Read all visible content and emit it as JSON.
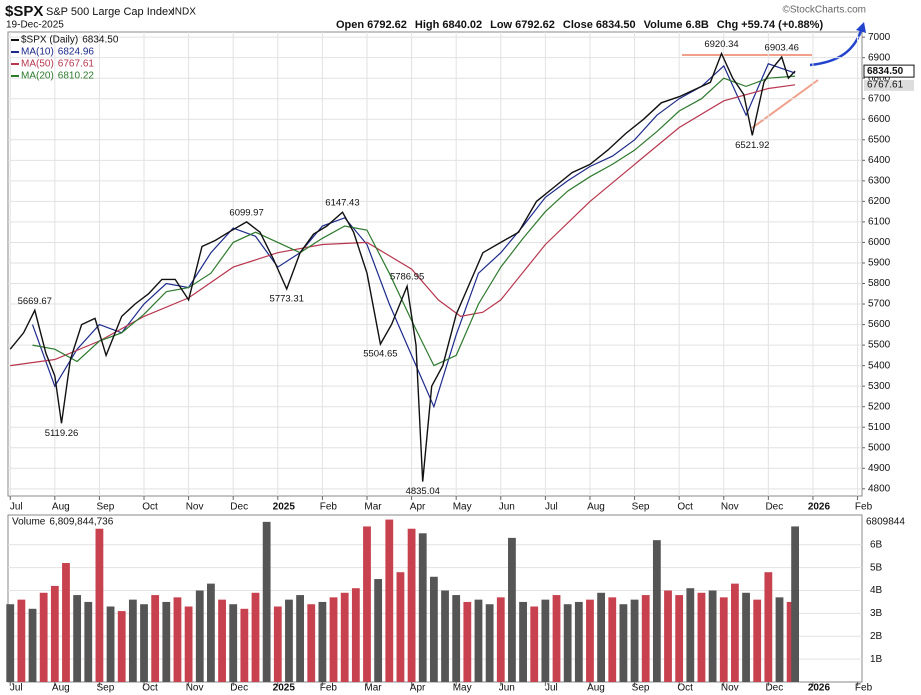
{
  "chart_data": [
    {
      "type": "line",
      "title": "$SPX",
      "subtitle": "S&P 500 Large Cap Index",
      "exchange": "INDX",
      "date": "19-Dec-2025",
      "watermark": "©StockCharts.com",
      "quote": [
        {
          "label": "Open",
          "value": "6792.62"
        },
        {
          "label": "High",
          "value": "6840.02"
        },
        {
          "label": "Low",
          "value": "6792.62"
        },
        {
          "label": "Close",
          "value": "6834.50"
        },
        {
          "label": "Volume",
          "value": "6.8B"
        },
        {
          "label": "Chg",
          "value": "+59.74 (+0.88%)"
        }
      ],
      "xlim": [
        -0.05,
        19.1
      ],
      "xticks": [
        {
          "value": 0,
          "label": "Jul"
        },
        {
          "value": 1,
          "label": "Aug"
        },
        {
          "value": 2,
          "label": "Sep"
        },
        {
          "value": 3,
          "label": "Oct"
        },
        {
          "value": 4,
          "label": "Nov"
        },
        {
          "value": 5,
          "label": "Dec"
        },
        {
          "value": 6,
          "label": "2025"
        },
        {
          "value": 7,
          "label": "Feb"
        },
        {
          "value": 8,
          "label": "Mar"
        },
        {
          "value": 9,
          "label": "Apr"
        },
        {
          "value": 10,
          "label": "May"
        },
        {
          "value": 11,
          "label": "Jun"
        },
        {
          "value": 12,
          "label": "Jul"
        },
        {
          "value": 13,
          "label": "Aug"
        },
        {
          "value": 14,
          "label": "Sep"
        },
        {
          "value": 15,
          "label": "Oct"
        },
        {
          "value": 16,
          "label": "Nov"
        },
        {
          "value": 17,
          "label": "Dec"
        },
        {
          "value": 18,
          "label": "2026"
        },
        {
          "value": 19,
          "label": "Feb"
        }
      ],
      "ylim": [
        4765,
        7025
      ],
      "yticks": [
        4800,
        4900,
        5000,
        5100,
        5200,
        5300,
        5400,
        5500,
        5600,
        5700,
        5800,
        5900,
        6000,
        6100,
        6200,
        6300,
        6400,
        6500,
        6600,
        6700,
        6800,
        6900,
        7000
      ],
      "grid": true,
      "series": [
        {
          "name": "$SPX (Daily)",
          "last_label": "6834.50",
          "color": "#111111",
          "x": [
            0,
            0.3,
            0.55,
            0.8,
            1.0,
            1.15,
            1.35,
            1.6,
            1.9,
            2.15,
            2.5,
            2.8,
            3.1,
            3.4,
            3.7,
            4.0,
            4.3,
            4.6,
            4.9,
            5.3,
            5.6,
            5.9,
            6.2,
            6.5,
            6.8,
            7.1,
            7.45,
            7.7,
            8.0,
            8.3,
            8.55,
            8.9,
            9.1,
            9.25,
            9.45,
            9.7,
            10.0,
            10.3,
            10.6,
            11.0,
            11.4,
            11.8,
            12.2,
            12.6,
            13.0,
            13.4,
            13.8,
            14.2,
            14.6,
            15.0,
            15.4,
            15.7,
            15.95,
            16.2,
            16.45,
            16.64,
            16.9,
            17.1,
            17.3,
            17.45,
            17.6
          ],
          "values": [
            5480,
            5560,
            5669.67,
            5460,
            5350,
            5119.26,
            5430,
            5600,
            5630,
            5450,
            5640,
            5700,
            5750,
            5820,
            5820,
            5720,
            5980,
            6010,
            6050,
            6099.97,
            6050,
            5920,
            5773.31,
            5950,
            6040,
            6080,
            6147.43,
            6050,
            5850,
            5504.65,
            5600,
            5786.95,
            5500,
            4835.04,
            5300,
            5400,
            5650,
            5800,
            5950,
            6000,
            6050,
            6200,
            6270,
            6340,
            6380,
            6450,
            6530,
            6600,
            6680,
            6710,
            6750,
            6780,
            6920.34,
            6800,
            6720,
            6521.92,
            6780,
            6850,
            6903.46,
            6800,
            6834.5
          ]
        },
        {
          "name": "MA(10)",
          "last_label": "6824.96",
          "color": "#1c2a8c",
          "x": [
            0.5,
            1,
            1.5,
            2,
            2.5,
            3,
            3.5,
            4,
            4.5,
            5,
            5.5,
            6,
            6.5,
            7,
            7.5,
            8,
            8.5,
            9,
            9.5,
            10,
            10.5,
            11,
            11.5,
            12,
            12.5,
            13,
            13.5,
            14,
            14.5,
            15,
            15.5,
            16,
            16.5,
            17,
            17.6
          ],
          "values": [
            5600,
            5300,
            5480,
            5600,
            5560,
            5700,
            5800,
            5780,
            5950,
            6070,
            6030,
            5880,
            5950,
            6080,
            6120,
            5990,
            5700,
            5450,
            5200,
            5550,
            5850,
            5950,
            6080,
            6220,
            6300,
            6370,
            6420,
            6500,
            6620,
            6700,
            6760,
            6860,
            6620,
            6870,
            6824.96
          ]
        },
        {
          "name": "MA(50)",
          "last_label": "6767.61",
          "color": "#b8374f",
          "x": [
            0,
            1,
            2,
            3,
            4,
            5,
            6,
            7,
            8,
            9,
            9.6,
            10.1,
            10.6,
            11,
            12,
            13,
            14,
            15,
            16,
            17,
            17.6
          ],
          "values": [
            5400,
            5430,
            5520,
            5640,
            5730,
            5880,
            5950,
            5990,
            6000,
            5870,
            5720,
            5640,
            5660,
            5720,
            5990,
            6200,
            6380,
            6560,
            6690,
            6750,
            6767.61
          ]
        },
        {
          "name": "MA(20)",
          "last_label": "6810.22",
          "color": "#2d7a2d",
          "x": [
            0.5,
            1,
            1.5,
            2,
            2.5,
            3,
            3.5,
            4,
            4.5,
            5,
            5.5,
            6,
            6.5,
            7,
            7.5,
            8,
            8.5,
            9,
            9.5,
            10,
            10.5,
            11,
            11.5,
            12,
            12.5,
            13,
            13.5,
            14,
            14.5,
            15,
            15.5,
            16,
            16.5,
            17,
            17.6
          ],
          "values": [
            5500,
            5480,
            5420,
            5520,
            5560,
            5650,
            5760,
            5780,
            5850,
            6000,
            6050,
            6000,
            5950,
            6020,
            6080,
            6060,
            5850,
            5620,
            5400,
            5450,
            5700,
            5880,
            6020,
            6150,
            6250,
            6320,
            6380,
            6450,
            6540,
            6640,
            6700,
            6800,
            6760,
            6800,
            6810.22
          ]
        }
      ],
      "annotations": [
        {
          "index": 2,
          "position": "above"
        },
        {
          "index": 5,
          "position": "below"
        },
        {
          "index": 19,
          "position": "above"
        },
        {
          "index": 22,
          "position": "below"
        },
        {
          "index": 26,
          "position": "above"
        },
        {
          "index": 29,
          "position": "below"
        },
        {
          "index": 31,
          "position": "above"
        },
        {
          "index": 33,
          "position": "below"
        },
        {
          "index": 52,
          "position": "above"
        },
        {
          "index": 55,
          "position": "below"
        },
        {
          "index": 58,
          "position": "above"
        }
      ]
    },
    {
      "type": "bar",
      "title": "Volume",
      "total_label": "6,809,844,736",
      "last_label": "6809844",
      "xlim": [
        -0.05,
        19.1
      ],
      "ylim": [
        0,
        7.3
      ],
      "yticks": [
        {
          "value": 1,
          "label": "1B"
        },
        {
          "value": 2,
          "label": "2B"
        },
        {
          "value": 3,
          "label": "3B"
        },
        {
          "value": 4,
          "label": "4B"
        },
        {
          "value": 5,
          "label": "5B"
        },
        {
          "value": 6,
          "label": "6B"
        }
      ],
      "palette": [
        "#c8414f",
        "#555555"
      ],
      "x": [
        0,
        0.25,
        0.5,
        0.75,
        1,
        1.25,
        1.5,
        1.75,
        2,
        2.25,
        2.5,
        2.75,
        3,
        3.25,
        3.5,
        3.75,
        4,
        4.25,
        4.5,
        4.75,
        5,
        5.25,
        5.5,
        5.75,
        6,
        6.25,
        6.5,
        6.75,
        7,
        7.25,
        7.5,
        7.75,
        8,
        8.25,
        8.5,
        8.75,
        9,
        9.25,
        9.5,
        9.75,
        10,
        10.25,
        10.5,
        10.75,
        11,
        11.25,
        11.5,
        11.75,
        12,
        12.25,
        12.5,
        12.75,
        13,
        13.25,
        13.5,
        13.75,
        14,
        14.25,
        14.5,
        14.75,
        15,
        15.25,
        15.5,
        15.75,
        16,
        16.25,
        16.5,
        16.75,
        17,
        17.25,
        17.5,
        17.6
      ],
      "values": [
        3.4,
        3.6,
        3.2,
        3.9,
        4.2,
        5.2,
        3.8,
        3.5,
        6.7,
        3.3,
        3.1,
        3.6,
        3.4,
        3.8,
        3.5,
        3.7,
        3.3,
        4.0,
        4.3,
        3.6,
        3.4,
        3.2,
        3.9,
        7.0,
        3.3,
        3.6,
        3.8,
        3.4,
        3.5,
        3.7,
        3.9,
        4.1,
        6.8,
        4.5,
        7.1,
        4.8,
        6.7,
        6.5,
        4.6,
        4.0,
        3.8,
        3.5,
        3.6,
        3.4,
        3.7,
        6.3,
        3.5,
        3.3,
        3.6,
        3.8,
        3.4,
        3.5,
        3.6,
        3.9,
        3.7,
        3.4,
        3.6,
        3.8,
        6.2,
        4.0,
        3.8,
        4.1,
        3.9,
        4.0,
        3.7,
        4.3,
        3.9,
        3.6,
        4.8,
        3.7,
        3.5,
        6.8
      ],
      "bar_colors": [
        1,
        0,
        1,
        0,
        0,
        0,
        1,
        1,
        0,
        1,
        0,
        1,
        1,
        0,
        1,
        0,
        0,
        1,
        1,
        0,
        1,
        0,
        0,
        1,
        0,
        1,
        1,
        0,
        1,
        0,
        0,
        0,
        0,
        1,
        0,
        0,
        0,
        1,
        1,
        1,
        1,
        0,
        1,
        1,
        0,
        1,
        1,
        0,
        1,
        0,
        1,
        1,
        0,
        1,
        0,
        1,
        1,
        0,
        1,
        0,
        0,
        1,
        0,
        1,
        0,
        0,
        1,
        0,
        0,
        1,
        0,
        1
      ],
      "grid": true
    }
  ]
}
